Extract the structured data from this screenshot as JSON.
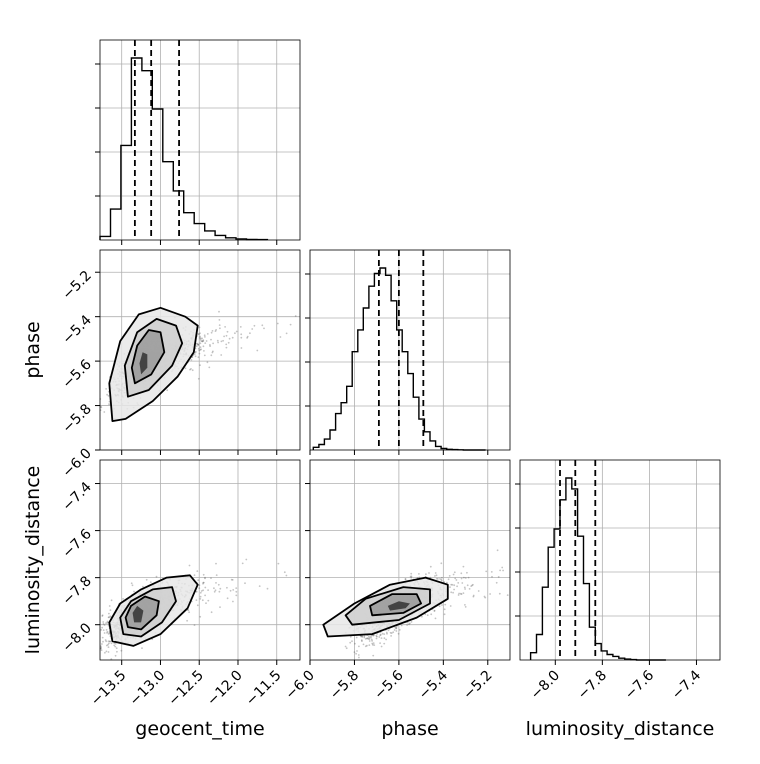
{
  "chart_data": {
    "type": "corner",
    "parameters": [
      "geocent_time",
      "phase",
      "luminosity_distance"
    ],
    "axis_labels": {
      "x": [
        "geocent_time",
        "phase",
        "luminosity_distance"
      ],
      "y": [
        "",
        "phase",
        "luminosity_distance"
      ]
    },
    "ranges": {
      "geocent_time": [
        -13.78,
        -11.2
      ],
      "phase": [
        -6.0,
        -5.1
      ],
      "luminosity_distance": [
        -8.15,
        -7.3
      ]
    },
    "ticks": {
      "geocent_time": [
        -13.5,
        -13.0,
        -12.5,
        -12.0,
        -11.5
      ],
      "phase": [
        -6.0,
        -5.8,
        -5.6,
        -5.4,
        -5.2
      ],
      "luminosity_distance": [
        -8.0,
        -7.8,
        -7.6,
        -7.4
      ]
    },
    "tick_labels": {
      "geocent_time": [
        "−13.5",
        "−13.0",
        "−12.5",
        "−12.0",
        "−11.5"
      ],
      "phase": [
        "−6.0",
        "−5.8",
        "−5.6",
        "−5.4",
        "−5.2"
      ],
      "luminosity_distance": [
        "−8.0",
        "−7.8",
        "−7.6",
        "−7.4"
      ]
    },
    "quantiles": {
      "geocent_time": [
        -13.33,
        -13.12,
        -12.76
      ],
      "phase": [
        -5.69,
        -5.6,
        -5.49
      ],
      "luminosity_distance": [
        -7.98,
        -7.915,
        -7.83
      ]
    },
    "histograms": {
      "geocent_time": {
        "bins": [
          -13.78,
          -13.645,
          -13.51,
          -13.375,
          -13.24,
          -13.105,
          -12.97,
          -12.835,
          -12.7,
          -12.565,
          -12.43,
          -12.295,
          -12.16,
          -12.025,
          -11.89,
          -11.755,
          -11.62
        ],
        "counts": [
          0.02,
          0.17,
          0.52,
          1.0,
          0.93,
          0.72,
          0.43,
          0.27,
          0.15,
          0.09,
          0.05,
          0.025,
          0.012,
          0.006,
          0.003,
          0.002
        ]
      },
      "phase": {
        "bins": [
          -5.985,
          -5.96,
          -5.935,
          -5.91,
          -5.885,
          -5.86,
          -5.835,
          -5.81,
          -5.785,
          -5.76,
          -5.735,
          -5.71,
          -5.685,
          -5.66,
          -5.635,
          -5.61,
          -5.585,
          -5.56,
          -5.535,
          -5.51,
          -5.485,
          -5.46,
          -5.435,
          -5.41,
          -5.385,
          -5.36,
          -5.335,
          -5.31,
          -5.285,
          -5.26,
          -5.235,
          -5.21
        ],
        "counts": [
          0.015,
          0.03,
          0.06,
          0.11,
          0.2,
          0.26,
          0.35,
          0.54,
          0.66,
          0.78,
          0.9,
          0.97,
          1.0,
          0.96,
          0.82,
          0.66,
          0.54,
          0.42,
          0.29,
          0.17,
          0.1,
          0.05,
          0.02,
          0.008,
          0.004,
          0.002,
          0.001,
          0.0,
          0.0,
          0.0,
          0.0
        ]
      },
      "luminosity_distance": {
        "bins": [
          -8.105,
          -8.08,
          -8.055,
          -8.03,
          -8.005,
          -7.98,
          -7.955,
          -7.93,
          -7.905,
          -7.88,
          -7.855,
          -7.83,
          -7.805,
          -7.78,
          -7.755,
          -7.73,
          -7.705,
          -7.68,
          -7.655,
          -7.63,
          -7.605,
          -7.58,
          -7.555,
          -7.53
        ],
        "counts": [
          0.04,
          0.14,
          0.4,
          0.62,
          0.72,
          0.88,
          1.0,
          0.94,
          0.68,
          0.42,
          0.18,
          0.09,
          0.05,
          0.03,
          0.02,
          0.01,
          0.005,
          0.002,
          0.0,
          0.0,
          0.0,
          0.0,
          0.0
        ]
      }
    },
    "panels_2d": [
      {
        "x": "geocent_time",
        "y": "phase",
        "center": [
          -13.15,
          -5.61
        ],
        "contours": [
          [
            [
              -13.62,
              -5.87
            ],
            [
              -13.45,
              -5.86
            ],
            [
              -13.1,
              -5.78
            ],
            [
              -12.78,
              -5.67
            ],
            [
              -12.57,
              -5.56
            ],
            [
              -12.52,
              -5.44
            ],
            [
              -12.68,
              -5.4
            ],
            [
              -13.0,
              -5.36
            ],
            [
              -13.28,
              -5.39
            ],
            [
              -13.52,
              -5.51
            ],
            [
              -13.66,
              -5.7
            ]
          ],
          [
            [
              -13.42,
              -5.76
            ],
            [
              -13.15,
              -5.73
            ],
            [
              -12.85,
              -5.62
            ],
            [
              -12.72,
              -5.52
            ],
            [
              -12.8,
              -5.44
            ],
            [
              -13.05,
              -5.41
            ],
            [
              -13.3,
              -5.47
            ],
            [
              -13.46,
              -5.62
            ]
          ],
          [
            [
              -13.33,
              -5.7
            ],
            [
              -13.12,
              -5.66
            ],
            [
              -12.95,
              -5.56
            ],
            [
              -13.0,
              -5.47
            ],
            [
              -13.15,
              -5.46
            ],
            [
              -13.3,
              -5.53
            ],
            [
              -13.37,
              -5.63
            ]
          ],
          [
            [
              -13.25,
              -5.66
            ],
            [
              -13.17,
              -5.63
            ],
            [
              -13.17,
              -5.57
            ],
            [
              -13.23,
              -5.56
            ],
            [
              -13.27,
              -5.61
            ]
          ]
        ]
      },
      {
        "x": "geocent_time",
        "y": "luminosity_distance",
        "center": [
          -13.3,
          -7.95
        ],
        "contours": [
          [
            [
              -13.62,
              -8.07
            ],
            [
              -13.35,
              -8.09
            ],
            [
              -13.0,
              -8.04
            ],
            [
              -12.65,
              -7.93
            ],
            [
              -12.52,
              -7.83
            ],
            [
              -12.62,
              -7.79
            ],
            [
              -12.92,
              -7.8
            ],
            [
              -13.25,
              -7.85
            ],
            [
              -13.52,
              -7.91
            ],
            [
              -13.66,
              -7.99
            ]
          ],
          [
            [
              -13.48,
              -8.04
            ],
            [
              -13.25,
              -8.05
            ],
            [
              -12.98,
              -7.99
            ],
            [
              -12.8,
              -7.9
            ],
            [
              -12.85,
              -7.84
            ],
            [
              -13.1,
              -7.85
            ],
            [
              -13.38,
              -7.9
            ],
            [
              -13.52,
              -7.97
            ]
          ],
          [
            [
              -13.42,
              -8.01
            ],
            [
              -13.25,
              -8.02
            ],
            [
              -13.05,
              -7.96
            ],
            [
              -13.02,
              -7.9
            ],
            [
              -13.2,
              -7.88
            ],
            [
              -13.38,
              -7.92
            ],
            [
              -13.45,
              -7.97
            ]
          ],
          [
            [
              -13.34,
              -7.99
            ],
            [
              -13.25,
              -7.99
            ],
            [
              -13.22,
              -7.94
            ],
            [
              -13.3,
              -7.92
            ],
            [
              -13.36,
              -7.95
            ]
          ]
        ]
      },
      {
        "x": "phase",
        "y": "luminosity_distance",
        "center": [
          -5.6,
          -7.925
        ],
        "contours": [
          [
            [
              -5.92,
              -8.05
            ],
            [
              -5.72,
              -8.04
            ],
            [
              -5.52,
              -7.97
            ],
            [
              -5.38,
              -7.89
            ],
            [
              -5.38,
              -7.83
            ],
            [
              -5.48,
              -7.8
            ],
            [
              -5.64,
              -7.83
            ],
            [
              -5.8,
              -7.91
            ],
            [
              -5.94,
              -8.0
            ]
          ],
          [
            [
              -5.81,
              -8.0
            ],
            [
              -5.6,
              -7.98
            ],
            [
              -5.46,
              -7.91
            ],
            [
              -5.46,
              -7.85
            ],
            [
              -5.58,
              -7.84
            ],
            [
              -5.75,
              -7.89
            ],
            [
              -5.84,
              -7.96
            ]
          ],
          [
            [
              -5.72,
              -7.96
            ],
            [
              -5.58,
              -7.95
            ],
            [
              -5.5,
              -7.91
            ],
            [
              -5.52,
              -7.87
            ],
            [
              -5.63,
              -7.87
            ],
            [
              -5.73,
              -7.92
            ]
          ],
          [
            [
              -5.64,
              -7.94
            ],
            [
              -5.57,
              -7.93
            ],
            [
              -5.55,
              -7.91
            ],
            [
              -5.6,
              -7.9
            ],
            [
              -5.65,
              -7.92
            ]
          ]
        ]
      }
    ]
  }
}
